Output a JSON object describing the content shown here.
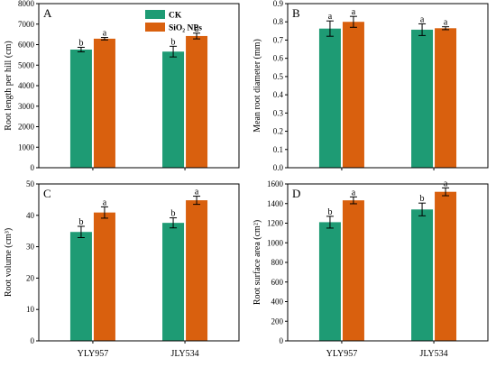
{
  "chart_data": [
    {
      "type": "bar",
      "panel_label": "A",
      "categories": [
        "YLY957",
        "JLY534"
      ],
      "ylabel": "Root length per hill (cm)",
      "ylim": [
        0,
        8000
      ],
      "yticks": [
        0,
        1000,
        2000,
        3000,
        4000,
        5000,
        6000,
        7000,
        8000
      ],
      "show_xtick_labels": false,
      "legend": {
        "position": "top-center",
        "entries": [
          "CK",
          "SiO₂ NPs"
        ]
      },
      "series": [
        {
          "name": "CK",
          "color": "#1e9b74",
          "values": [
            5760,
            5660
          ],
          "errors": [
            110,
            260
          ],
          "letters": [
            "b",
            "b"
          ]
        },
        {
          "name": "SiO₂ NPs",
          "color": "#d9600e",
          "values": [
            6290,
            6420
          ],
          "errors": [
            60,
            140
          ],
          "letters": [
            "a",
            "a"
          ]
        }
      ]
    },
    {
      "type": "bar",
      "panel_label": "B",
      "categories": [
        "YLY957",
        "JLY534"
      ],
      "ylabel": "Mean root diameter (mm)",
      "ylim": [
        0,
        0.9
      ],
      "yticks": [
        0.0,
        0.1,
        0.2,
        0.3,
        0.4,
        0.5,
        0.6,
        0.7,
        0.8,
        0.9
      ],
      "show_xtick_labels": false,
      "series": [
        {
          "name": "CK",
          "color": "#1e9b74",
          "values": [
            0.763,
            0.757
          ],
          "errors": [
            0.042,
            0.032
          ],
          "letters": [
            "a",
            "a"
          ]
        },
        {
          "name": "SiO₂ NPs",
          "color": "#d9600e",
          "values": [
            0.8,
            0.765
          ],
          "errors": [
            0.03,
            0.008
          ],
          "letters": [
            "a",
            "a"
          ]
        }
      ]
    },
    {
      "type": "bar",
      "panel_label": "C",
      "categories": [
        "YLY957",
        "JLY534"
      ],
      "ylabel": "Root volume (cm³)",
      "ylim": [
        0,
        50
      ],
      "yticks": [
        0,
        10,
        20,
        30,
        40,
        50
      ],
      "show_xtick_labels": true,
      "series": [
        {
          "name": "CK",
          "color": "#1e9b74",
          "values": [
            34.7,
            37.6
          ],
          "errors": [
            1.8,
            1.6
          ],
          "letters": [
            "b",
            "b"
          ]
        },
        {
          "name": "SiO₂ NPs",
          "color": "#d9600e",
          "values": [
            40.9,
            44.8
          ],
          "errors": [
            1.8,
            1.3
          ],
          "letters": [
            "a",
            "a"
          ]
        }
      ]
    },
    {
      "type": "bar",
      "panel_label": "D",
      "categories": [
        "YLY957",
        "JLY534"
      ],
      "ylabel": "Root surface area (cm²)",
      "ylim": [
        0,
        1600
      ],
      "yticks": [
        0,
        200,
        400,
        600,
        800,
        1000,
        1200,
        1400,
        1600
      ],
      "show_xtick_labels": true,
      "series": [
        {
          "name": "CK",
          "color": "#1e9b74",
          "values": [
            1210,
            1340
          ],
          "errors": [
            60,
            65
          ],
          "letters": [
            "b",
            "b"
          ]
        },
        {
          "name": "SiO₂ NPs",
          "color": "#d9600e",
          "values": [
            1433,
            1520
          ],
          "errors": [
            35,
            40
          ],
          "letters": [
            "a",
            "a"
          ]
        }
      ]
    }
  ]
}
